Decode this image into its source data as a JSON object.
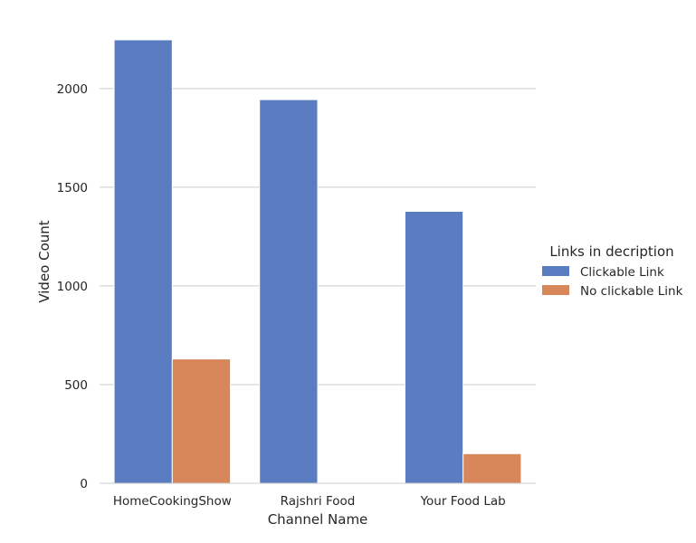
{
  "chart_data": {
    "type": "bar",
    "categories": [
      "HomeCookingShow",
      "Rajshri Food",
      "Your Food Lab"
    ],
    "series": [
      {
        "name": "Clickable Link",
        "color": "#5a7dc2",
        "values": [
          2247,
          1944,
          1378
        ]
      },
      {
        "name": "No clickable Link",
        "color": "#d8875a",
        "values": [
          630,
          0,
          150
        ]
      }
    ],
    "xlabel": "Channel Name",
    "ylabel": "Video Count",
    "ylim": [
      0,
      2247
    ],
    "yticks": [
      0,
      500,
      1000,
      1500,
      2000
    ],
    "grid": true,
    "legend": {
      "title": "Links in decription",
      "position": "right"
    }
  }
}
